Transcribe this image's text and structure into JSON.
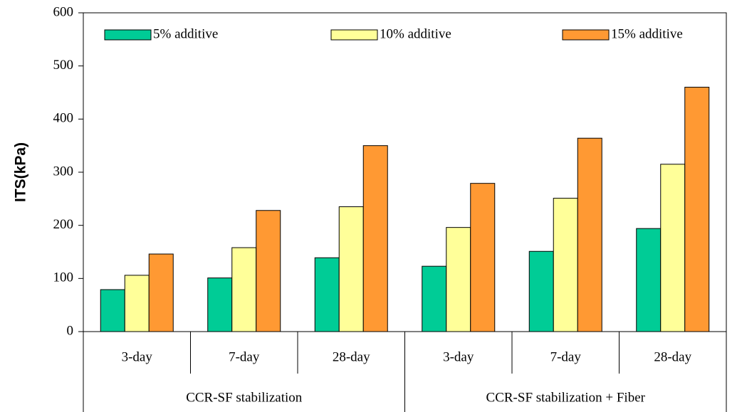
{
  "chart_data": {
    "type": "bar",
    "y_label": "ITS(kPa)",
    "categories": [
      "3-day",
      "7-day",
      "28-day",
      "3-day",
      "7-day",
      "28-day"
    ],
    "groups": [
      "CCR-SF stabilization",
      "CCR-SF stabilization + Fiber"
    ],
    "series": [
      {
        "name": "5% additive",
        "color": "#00cc96",
        "values": [
          79,
          101,
          139,
          123,
          151,
          194
        ]
      },
      {
        "name": "10% additive",
        "color": "#ffff99",
        "values": [
          106,
          158,
          235,
          196,
          251,
          315
        ]
      },
      {
        "name": "15% additive",
        "color": "#ff9933",
        "values": [
          146,
          228,
          350,
          279,
          364,
          460
        ]
      }
    ],
    "ylim": [
      0,
      600
    ],
    "yticks": [
      0,
      100,
      200,
      300,
      400,
      500,
      600
    ],
    "grid": false
  }
}
